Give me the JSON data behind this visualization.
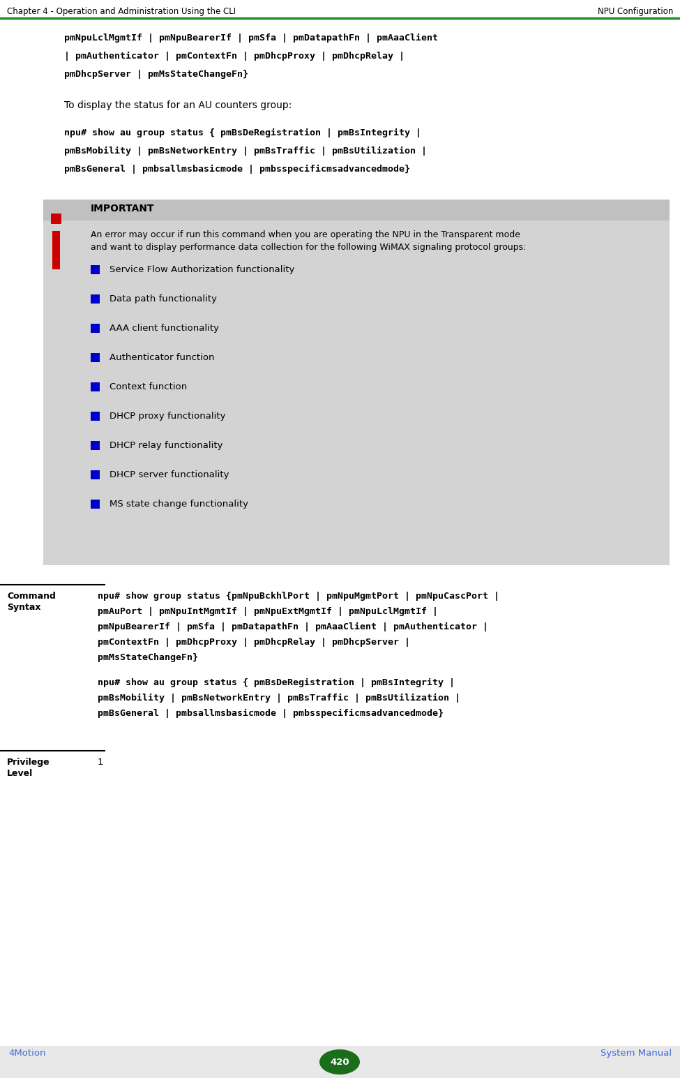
{
  "header_left": "Chapter 4 - Operation and Administration Using the CLI",
  "header_right": "NPU Configuration",
  "header_line_color": "#228B22",
  "footer_left": "4Motion",
  "footer_center": "420",
  "footer_right": "System Manual",
  "footer_circle_color": "#1a6e1a",
  "footer_text_color": "#4169E1",
  "page_bg": "#ffffff",
  "mono_font": "DejaVu Sans Mono",
  "sans_font": "DejaVu Sans",
  "code_color": "#000000",
  "body_color": "#000000",
  "important_bg": "#d3d3d3",
  "important_title_bg": "#c0c0c0",
  "important_title": "IMPORTANT",
  "important_icon_color": "#cc0000",
  "bullet_color": "#0000cc",
  "line1_code": "pmNpuLclMgmtIf | pmNpuBearerIf | pmSfa | pmDatapathFn | pmAaaClient",
  "line2_code": "| pmAuthenticator | pmContextFn | pmDhcpProxy | pmDhcpRelay |",
  "line3_code": "pmDhcpServer | pmMsStateChangeFn}",
  "intro_text": "To display the status for an AU counters group:",
  "au_line1": "npu# show au group status { pmBsDeRegistration | pmBsIntegrity |",
  "au_line2": "pmBsMobility | pmBsNetworkEntry | pmBsTraffic | pmBsUtilization |",
  "au_line3": "pmBsGeneral | pmbsallmsbasicmode | pmbsspecificmsadvancedmode}",
  "important_body_line1": "An error may occur if run this command when you are operating the NPU in the Transparent mode",
  "important_body_line2": "and want to display performance data collection for the following WiMAX signaling protocol groups:",
  "bullet_items": [
    "Service Flow Authorization functionality",
    "Data path functionality",
    "AAA client functionality",
    "Authenticator function",
    "Context function",
    "DHCP proxy functionality",
    "DHCP relay functionality",
    "DHCP server functionality",
    "MS state change functionality"
  ],
  "cmd_label_line1": "Command",
  "cmd_label_line2": "Syntax",
  "cmd_line1": "npu# show group status {pmNpuBckhlPort | pmNpuMgmtPort | pmNpuCascPort |",
  "cmd_line2": "pmAuPort | pmNpuIntMgmtIf | pmNpuExtMgmtIf | pmNpuLclMgmtIf |",
  "cmd_line3": "pmNpuBearerIf | pmSfa | pmDatapathFn | pmAaaClient | pmAuthenticator |",
  "cmd_line4": "pmContextFn | pmDhcpProxy | pmDhcpRelay | pmDhcpServer |",
  "cmd_line5": "pmMsStateChangeFn}",
  "cmd_line6": "npu# show au group status { pmBsDeRegistration | pmBsIntegrity |",
  "cmd_line7": "pmBsMobility | pmBsNetworkEntry | pmBsTraffic | pmBsUtilization |",
  "cmd_line8": "pmBsGeneral | pmbsallmsbasicmode | pmbsspecificmsadvancedmode}",
  "priv_label_line1": "Privilege",
  "priv_label_line2": "Level",
  "priv_value": "1"
}
